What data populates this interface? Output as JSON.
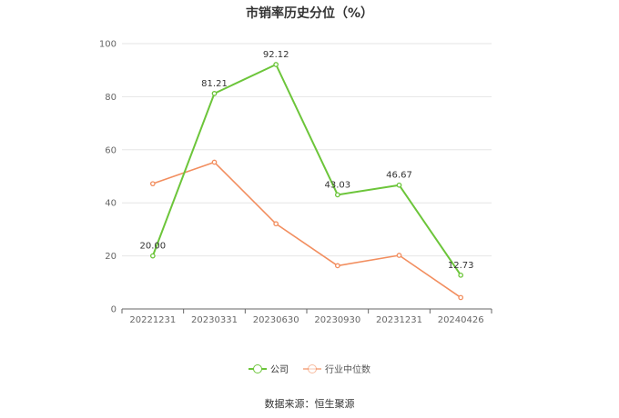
{
  "chart_data": {
    "type": "line",
    "title": "市销率历史分位（%）",
    "categories": [
      "20221231",
      "20230331",
      "20230630",
      "20230930",
      "20231231",
      "20240426"
    ],
    "ylim": [
      0,
      100
    ],
    "yticks": [
      0,
      20,
      40,
      60,
      80,
      100
    ],
    "grid": true,
    "legend_position": "bottom",
    "series": [
      {
        "name": "公司",
        "color": "#6cc53a",
        "values": [
          20.0,
          81.21,
          92.12,
          43.03,
          46.67,
          12.73
        ],
        "labels": [
          "20.00",
          "81.21",
          "92.12",
          "43.03",
          "46.67",
          "12.73"
        ]
      },
      {
        "name": "行业中位数",
        "color": "#f28e5f",
        "values": [
          47.2,
          55.3,
          32.1,
          16.3,
          20.2,
          4.3
        ]
      }
    ]
  },
  "source": "数据来源：恒生聚源"
}
